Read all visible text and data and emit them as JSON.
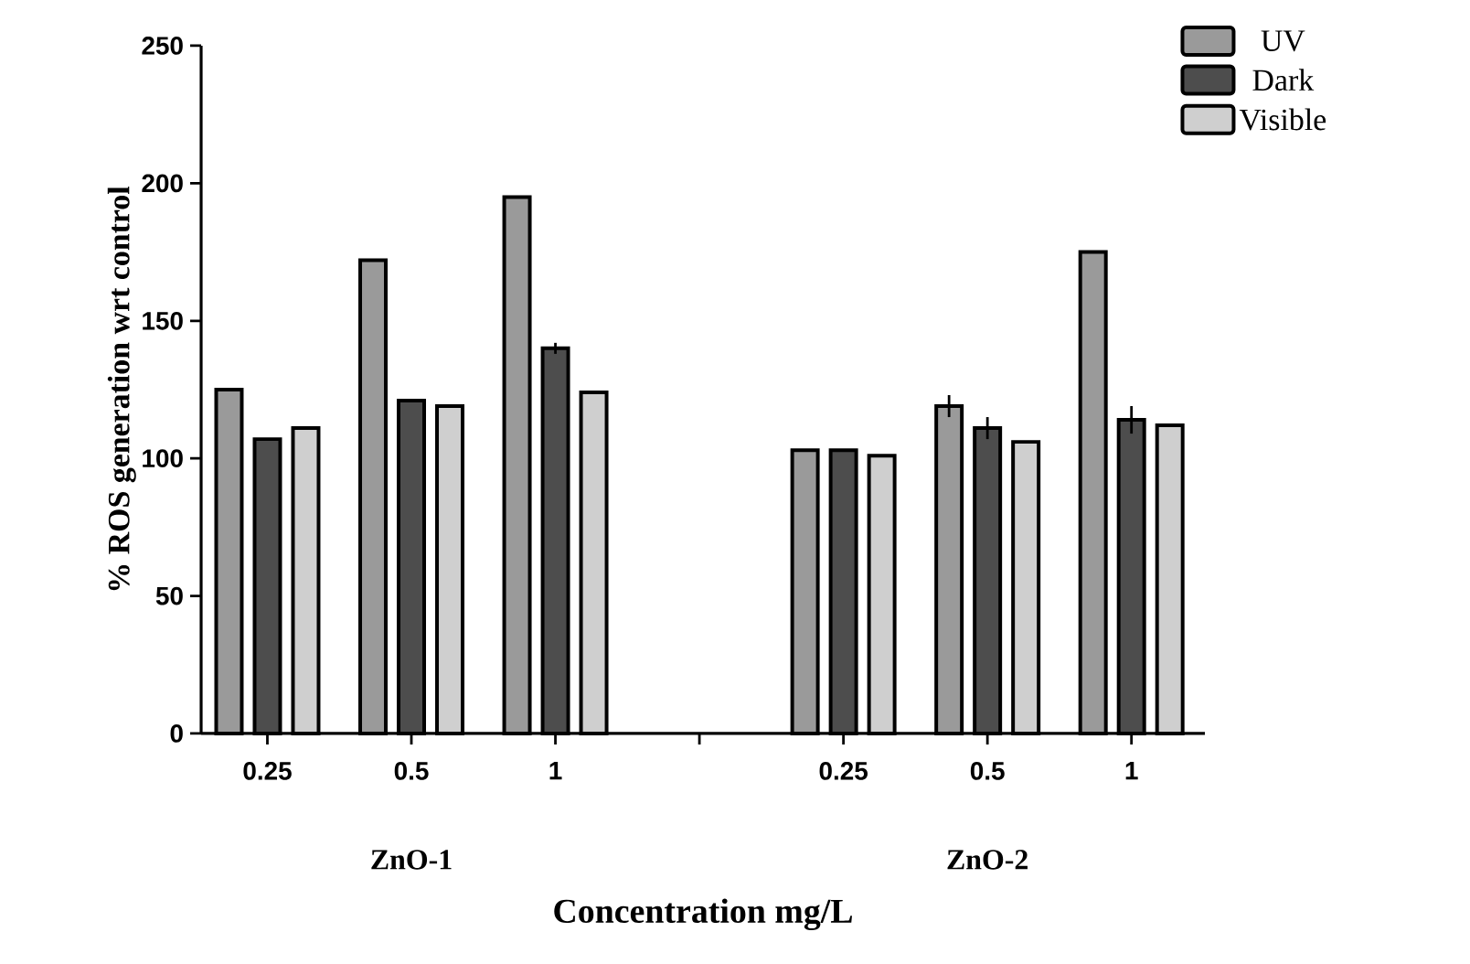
{
  "chart_data": {
    "type": "bar",
    "xlabel": "Concentration mg/L",
    "ylabel": "% ROS generation wrt control",
    "categories": [
      "0.25",
      "0.5",
      "1",
      null,
      "0.25",
      "0.5",
      "1"
    ],
    "series": [
      {
        "name": "UV",
        "color": "#9a9a9a",
        "values": [
          125,
          172,
          195,
          null,
          103,
          119,
          175
        ],
        "errors": [
          null,
          null,
          null,
          null,
          null,
          4,
          null
        ]
      },
      {
        "name": "Dark",
        "color": "#4d4d4d",
        "values": [
          107,
          121,
          140,
          null,
          103,
          111,
          114
        ],
        "errors": [
          null,
          null,
          2,
          null,
          null,
          4,
          5
        ]
      },
      {
        "name": "Visible",
        "color": "#cfcfcf",
        "values": [
          111,
          119,
          124,
          null,
          101,
          106,
          112
        ]
      }
    ],
    "ylim": [
      0,
      250
    ],
    "yticks": [
      0,
      50,
      100,
      150,
      200,
      250
    ],
    "annotations": [
      "ZnO-1",
      "ZnO-2"
    ],
    "legend": "top right",
    "grid": false
  }
}
